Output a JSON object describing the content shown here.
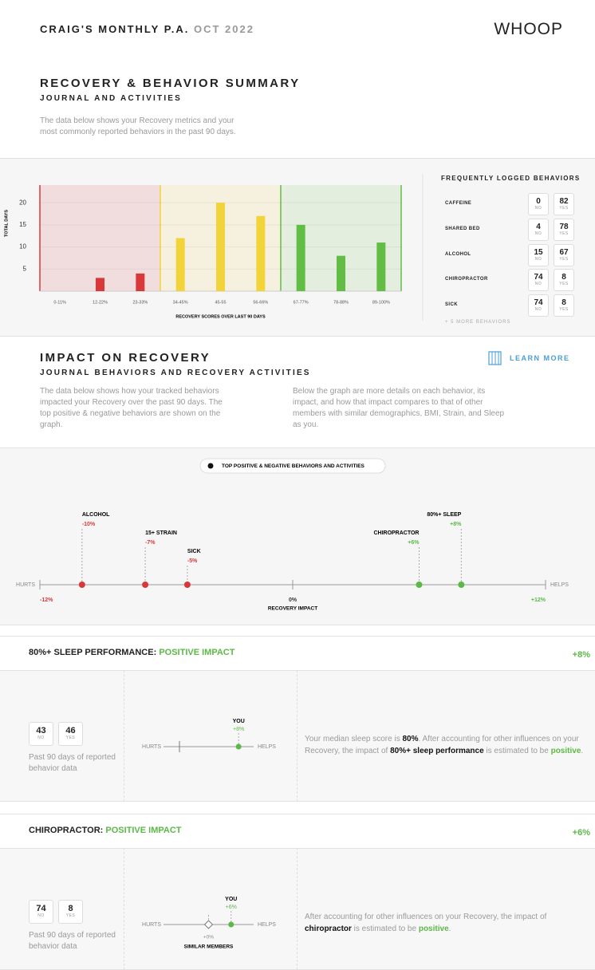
{
  "header": {
    "title": "CRAIG'S MONTHLY P.A.",
    "period": "OCT 2022",
    "logo": "WHOOP"
  },
  "summary": {
    "title": "RECOVERY & BEHAVIOR SUMMARY",
    "subtitle": "JOURNAL AND ACTIVITIES",
    "description": "The data below shows your Recovery metrics and your most commonly reported behaviors in the past 90 days."
  },
  "chart_data": [
    {
      "type": "bar",
      "ylabel": "TOTAL DAYS",
      "xlabel": "RECOVERY SCORES OVER LAST 90 DAYS",
      "categories": [
        "0-11%",
        "12-22%",
        "23-33%",
        "34-45%",
        "45-55",
        "56-66%",
        "67-77%",
        "78-88%",
        "89-100%"
      ],
      "values": [
        0,
        3,
        4,
        12,
        20,
        17,
        15,
        8,
        11
      ],
      "colors": [
        "#d9383a",
        "#d9383a",
        "#d9383a",
        "#f2d43a",
        "#f2d43a",
        "#f2d43a",
        "#62bd45",
        "#62bd45",
        "#62bd45"
      ],
      "ylim": [
        0,
        24
      ],
      "yticks": [
        5,
        10,
        15,
        20
      ],
      "grid": true
    },
    {
      "type": "dot",
      "legend": "TOP POSITIVE & NEGATIVE BEHAVIORS AND ACTIVITIES",
      "left_label": "HURTS",
      "right_label": "HELPS",
      "xlabel": "RECOVERY IMPACT",
      "categories": [
        "ALCOHOL",
        "15+ STRAIN",
        "SICK",
        "CHIROPRACTOR",
        "80%+ SLEEP"
      ],
      "values": [
        -10,
        -7,
        -5,
        6,
        8
      ],
      "value_labels": [
        "-10%",
        "-7%",
        "-5%",
        "+6%",
        "+8%"
      ],
      "negative_color": "#d9383a",
      "positive_color": "#5bb947",
      "xlim": [
        -12,
        12
      ],
      "xticks": [
        {
          "value": -12,
          "label": "-12%"
        },
        {
          "value": 0,
          "label": "0%"
        },
        {
          "value": 12,
          "label": "+12%"
        }
      ]
    }
  ],
  "behaviors": {
    "title": "FREQUENTLY LOGGED BEHAVIORS",
    "columns": [
      "NO",
      "YES"
    ],
    "rows": [
      {
        "name": "CAFFEINE",
        "counts": [
          0,
          82
        ]
      },
      {
        "name": "SHARED BED",
        "counts": [
          4,
          78
        ]
      },
      {
        "name": "ALCOHOL",
        "counts": [
          15,
          67
        ]
      },
      {
        "name": "CHIROPRACTOR",
        "counts": [
          74,
          8
        ]
      },
      {
        "name": "SICK",
        "counts": [
          74,
          8
        ]
      }
    ],
    "more": "+ 5 MORE BEHAVIORS"
  },
  "impact": {
    "title": "IMPACT ON RECOVERY",
    "subtitle": "JOURNAL BEHAVIORS AND RECOVERY ACTIVITIES",
    "link": "LEARN MORE",
    "left_text": "The data below shows how your tracked behaviors impacted your Recovery over the past 90 days. The top positive & negative behaviors are shown on the graph.",
    "right_text": "Below the graph are more details on each behavior, its impact, and how that impact compares to that of other members with similar demographics, BMI, Strain, and Sleep as you."
  },
  "cards": [
    {
      "title": "80%+ SLEEP PERFORMANCE:",
      "impact_label": "POSITIVE IMPACT",
      "impact": "+8%",
      "counts": [
        43,
        46
      ],
      "note": "Past 90 days of reported behavior data",
      "mini": {
        "left": "HURTS",
        "right": "HELPS",
        "you": "YOU",
        "value": 8,
        "value_label": "+8%"
      },
      "text": [
        {
          "text": "Your median sleep score is "
        },
        {
          "text": "80%",
          "style": "bold"
        },
        {
          "text": ". After accounting for other influences on your Recovery, the impact of "
        },
        {
          "text": "80%+ sleep performance",
          "style": "bold"
        },
        {
          "text": " is estimated to be "
        },
        {
          "text": "positive",
          "style": "good"
        },
        {
          "text": "."
        }
      ]
    },
    {
      "title": "CHIROPRACTOR:",
      "impact_label": "POSITIVE IMPACT",
      "impact": "+6%",
      "counts": [
        74,
        8
      ],
      "note": "Past 90 days of reported behavior data",
      "mini": {
        "left": "HURTS",
        "right": "HELPS",
        "you": "YOU",
        "value": 6,
        "value_label": "+6%",
        "similar": "SIMILAR MEMBERS",
        "similar_value": 0,
        "similar_label": "+0%"
      },
      "text": [
        {
          "text": "After accounting for other influences on your Recovery, the impact of "
        },
        {
          "text": "chiropractor",
          "style": "bold"
        },
        {
          "text": " is estimated to be "
        },
        {
          "text": "positive",
          "style": "good"
        },
        {
          "text": "."
        }
      ]
    }
  ]
}
